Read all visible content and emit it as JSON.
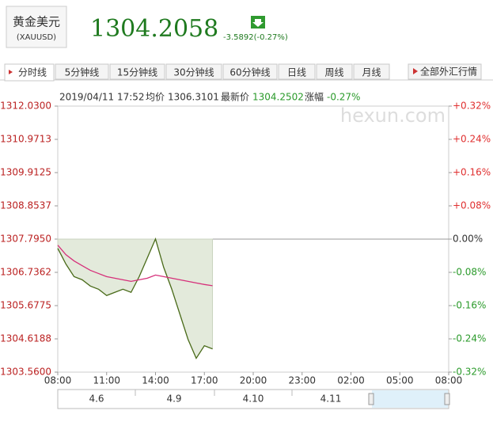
{
  "header": {
    "name": "黄金美元",
    "code": "(XAUUSD)",
    "price": "1304.2058",
    "change": "-3.5892(-0.27%)"
  },
  "tabs": [
    "分时线",
    "5分钟线",
    "15分钟线",
    "30分钟线",
    "60分钟线",
    "日线",
    "周线",
    "月线"
  ],
  "all_link": "全部外汇行情",
  "info": {
    "time": "2019/04/11 17:52",
    "avg_label": "均价",
    "avg": "1306.3101",
    "last_label": "最新价",
    "last": "1304.2502",
    "chg_label": "涨幅",
    "chg": "-0.27%"
  },
  "watermark": "hexun.com",
  "navigator": [
    "4.6",
    "4.9",
    "4.10",
    "4.11"
  ],
  "chart_data": {
    "type": "line",
    "categories": [
      "08:00",
      null,
      null,
      null,
      null,
      null,
      "11:00",
      null,
      null,
      null,
      null,
      null,
      "14:00",
      null,
      null,
      null,
      null,
      null,
      "17:00",
      null,
      null,
      null,
      null,
      null,
      "20:00",
      null,
      null,
      null,
      null,
      null,
      "23:00",
      null,
      null,
      null,
      null,
      null,
      "02:00",
      null,
      null,
      null,
      null,
      null,
      "05:00",
      null,
      null,
      null,
      null,
      null,
      "08:00"
    ],
    "series": [
      {
        "color": "#4a6b1a",
        "values": [
          1307.5,
          1307.0,
          1306.6,
          1306.5,
          1306.3,
          1306.2,
          1306.0,
          1306.1,
          1306.2,
          1306.1,
          1306.6,
          1307.2,
          1307.8,
          1306.9,
          1306.2,
          1305.4,
          1304.6,
          1304.0,
          1304.4,
          1304.3,
          null,
          null,
          null,
          null,
          null,
          null,
          null,
          null,
          null,
          null,
          null,
          null,
          null,
          null,
          null,
          null,
          null,
          null,
          null,
          null,
          null,
          null,
          null,
          null,
          null,
          null,
          null,
          null,
          null
        ]
      },
      {
        "color": "#d6307a",
        "values": [
          1307.6,
          1307.3,
          1307.1,
          1306.95,
          1306.8,
          1306.7,
          1306.6,
          1306.55,
          1306.5,
          1306.45,
          1306.5,
          1306.55,
          1306.65,
          1306.6,
          1306.55,
          1306.5,
          1306.45,
          1306.4,
          1306.35,
          1306.31,
          null,
          null,
          null,
          null,
          null,
          null,
          null,
          null,
          null,
          null,
          null,
          null,
          null,
          null,
          null,
          null,
          null,
          null,
          null,
          null,
          null,
          null,
          null,
          null,
          null,
          null,
          null,
          null,
          null
        ]
      }
    ],
    "fill": "#e3eadb",
    "ylim": [
      1303.56,
      1312.03
    ],
    "yticks": [
      {
        "value": 1312.03,
        "label": "1312.0300"
      },
      {
        "value": 1310.9713,
        "label": "1310.9713"
      },
      {
        "value": 1309.9125,
        "label": "1309.9125"
      },
      {
        "value": 1308.8537,
        "label": "1308.8537"
      },
      {
        "value": 1307.795,
        "label": "1307.7950"
      },
      {
        "value": 1306.7362,
        "label": "1306.7362"
      },
      {
        "value": 1305.6775,
        "label": "1305.6775"
      },
      {
        "value": 1304.6188,
        "label": "1304.6188"
      },
      {
        "value": 1303.56,
        "label": "1303.5600"
      }
    ],
    "y2lim": [
      -0.32,
      0.32
    ],
    "y2ticks": [
      {
        "value": 0.32,
        "label": "+0.32%"
      },
      {
        "value": 0.24,
        "label": "+0.24%"
      },
      {
        "value": 0.16,
        "label": "+0.16%"
      },
      {
        "value": 0.08,
        "label": "+0.08%"
      },
      {
        "value": 0,
        "label": "0.00%"
      },
      {
        "value": -0.08,
        "label": "-0.08%"
      },
      {
        "value": -0.16,
        "label": "-0.16%"
      },
      {
        "value": -0.24,
        "label": "-0.24%"
      },
      {
        "value": -0.32,
        "label": "-0.32%"
      }
    ]
  }
}
